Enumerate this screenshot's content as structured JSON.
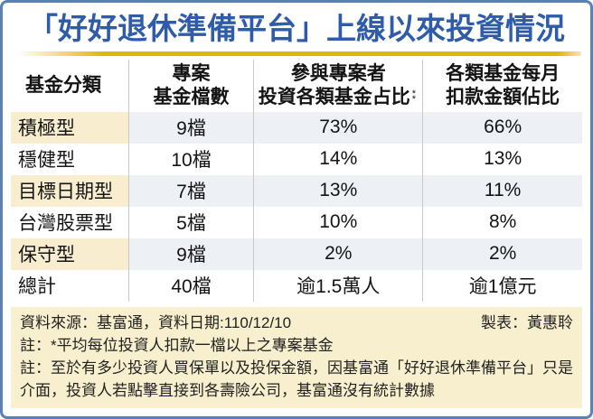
{
  "title": "「好好退休準備平台」上線以來投資情況",
  "chart_data": {
    "type": "table",
    "title": "「好好退休準備平台」上線以來投資情況",
    "columns": [
      "基金分類",
      "專案基金檔數",
      "參與專案者投資各類基金占比*",
      "各類基金每月扣款金額佔比"
    ],
    "rows": [
      [
        "積極型",
        "9檔",
        "73%",
        "66%"
      ],
      [
        "穩健型",
        "10檔",
        "14%",
        "13%"
      ],
      [
        "目標日期型",
        "7檔",
        "13%",
        "11%"
      ],
      [
        "台灣股票型",
        "5檔",
        "10%",
        "8%"
      ],
      [
        "保守型",
        "9檔",
        "2%",
        "2%"
      ],
      [
        "總計",
        "40檔",
        "逾1.5萬人",
        "逾1億元"
      ]
    ]
  },
  "table": {
    "headers": [
      {
        "line1": "基金分類",
        "line2": ""
      },
      {
        "line1": "專案",
        "line2": "基金檔數"
      },
      {
        "line1": "參與專案者",
        "line2": "投資各類基金占比"
      },
      {
        "line1": "各類基金每月",
        "line2": "扣款金額佔比"
      }
    ],
    "footnote_marker": "**"
  },
  "footer": {
    "source": "資料來源：基富通，資料日期:110/12/10",
    "credit": "製表：黃惠聆",
    "note1": "註：*平均每位投資人扣款一檔以上之專案基金",
    "note2": "註：至於有多少投資人買保單以及投保金額，因基富通「好好退休準備平台」只是介面，投資人若點擊直接到各壽險公司，基富通沒有統計數據"
  },
  "colors": {
    "frame_blue": "#5b80b6",
    "title_blue": "#2e5ca8",
    "gold": "#e6b30e",
    "row_cream": "#f8eecf",
    "row_bluegray": "#edf0f5",
    "footer_cream": "#f7efcd"
  }
}
